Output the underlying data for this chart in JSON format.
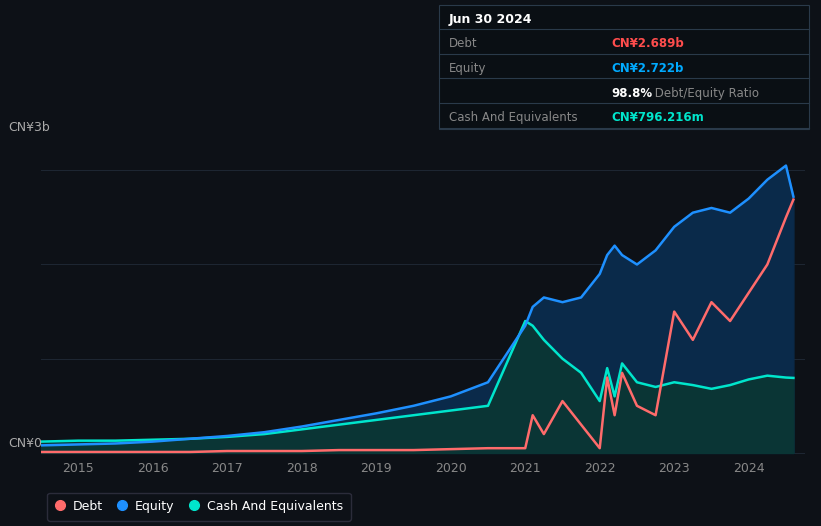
{
  "bg_color": "#0d1117",
  "plot_bg_color": "#0d1117",
  "grid_color": "#1e2733",
  "title_box": {
    "date": "Jun 30 2024",
    "rows": [
      {
        "label": "Debt",
        "value": "CN¥2.689b",
        "value_color": "#ff4d4d"
      },
      {
        "label": "Equity",
        "value": "CN¥2.722b",
        "value_color": "#00aaff"
      },
      {
        "label": "",
        "value_bold": "98.8%",
        "value_rest": " Debt/Equity Ratio",
        "value_color": "#ffffff"
      },
      {
        "label": "Cash And Equivalents",
        "value": "CN¥796.216m",
        "value_color": "#00e5cc"
      }
    ]
  },
  "ylabel_top": "CN¥3b",
  "ylabel_bottom": "CN¥0",
  "xlim": [
    2014.5,
    2024.75
  ],
  "ylim": [
    -50000000.0,
    3300000000.0
  ],
  "xticks": [
    2015,
    2016,
    2017,
    2018,
    2019,
    2020,
    2021,
    2022,
    2023,
    2024
  ],
  "ytick_positions": [
    0,
    3000000000.0
  ],
  "debt_color": "#ff6b6b",
  "equity_color": "#1e90ff",
  "cash_color": "#00e5cc",
  "equity_fill_color": "#0a2a4a",
  "cash_fill_color": "#0a3535",
  "years": [
    2014.5,
    2015.0,
    2015.5,
    2016.0,
    2016.5,
    2017.0,
    2017.5,
    2018.0,
    2018.5,
    2019.0,
    2019.5,
    2020.0,
    2020.5,
    2021.0,
    2021.1,
    2021.25,
    2021.5,
    2021.75,
    2022.0,
    2022.1,
    2022.2,
    2022.3,
    2022.5,
    2022.75,
    2023.0,
    2023.25,
    2023.5,
    2023.75,
    2024.0,
    2024.25,
    2024.5,
    2024.6
  ],
  "equity": [
    80000000.0,
    90000000.0,
    100000000.0,
    120000000.0,
    150000000.0,
    180000000.0,
    220000000.0,
    280000000.0,
    350000000.0,
    420000000.0,
    500000000.0,
    600000000.0,
    750000000.0,
    1350000000.0,
    1550000000.0,
    1650000000.0,
    1600000000.0,
    1650000000.0,
    1900000000.0,
    2100000000.0,
    2200000000.0,
    2100000000.0,
    2000000000.0,
    2150000000.0,
    2400000000.0,
    2550000000.0,
    2600000000.0,
    2550000000.0,
    2700000000.0,
    2900000000.0,
    3050000000.0,
    2720000000.0
  ],
  "cash": [
    120000000.0,
    130000000.0,
    130000000.0,
    140000000.0,
    150000000.0,
    170000000.0,
    200000000.0,
    250000000.0,
    300000000.0,
    350000000.0,
    400000000.0,
    450000000.0,
    500000000.0,
    1400000000.0,
    1350000000.0,
    1200000000.0,
    1000000000.0,
    850000000.0,
    550000000.0,
    900000000.0,
    600000000.0,
    950000000.0,
    750000000.0,
    700000000.0,
    750000000.0,
    720000000.0,
    680000000.0,
    720000000.0,
    780000000.0,
    820000000.0,
    800000000.0,
    796000000.0
  ],
  "debt": [
    10000000.0,
    10000000.0,
    10000000.0,
    10000000.0,
    10000000.0,
    20000000.0,
    20000000.0,
    20000000.0,
    30000000.0,
    30000000.0,
    30000000.0,
    40000000.0,
    50000000.0,
    50000000.0,
    400000000.0,
    200000000.0,
    550000000.0,
    300000000.0,
    50000000.0,
    800000000.0,
    400000000.0,
    850000000.0,
    500000000.0,
    400000000.0,
    1500000000.0,
    1200000000.0,
    1600000000.0,
    1400000000.0,
    1700000000.0,
    2000000000.0,
    2500000000.0,
    2689000000.0
  ]
}
